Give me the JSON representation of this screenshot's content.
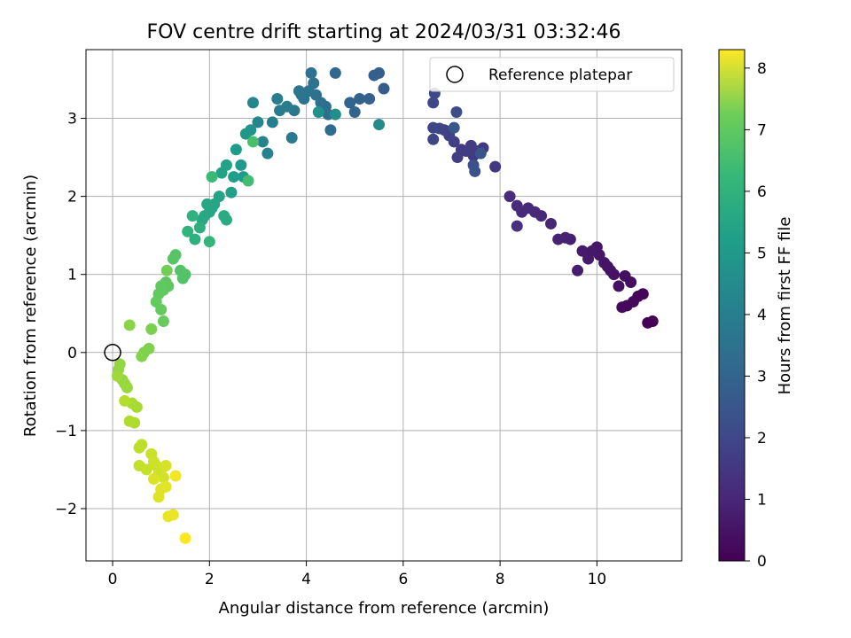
{
  "chart_data": {
    "type": "scatter",
    "title": "FOV centre drift starting at 2024/03/31 03:32:46",
    "xlabel": "Angular distance from reference (arcmin)",
    "ylabel": "Rotation from reference (arcmin)",
    "xlim": [
      -0.55,
      11.75
    ],
    "ylim": [
      -2.67,
      3.88
    ],
    "xticks": [
      0,
      2,
      4,
      6,
      8,
      10
    ],
    "yticks": [
      -2,
      -1,
      0,
      1,
      2,
      3
    ],
    "grid": true,
    "legend": {
      "placement": "top-right",
      "entries": [
        "Reference platepar"
      ]
    },
    "reference_point": {
      "x": 0,
      "y": 0
    },
    "colorbar": {
      "label": "Hours from first FF file",
      "colormap": "viridis",
      "range": [
        0,
        8.3
      ],
      "ticks": [
        0,
        1,
        2,
        3,
        4,
        5,
        6,
        7,
        8
      ]
    },
    "series": [
      {
        "points": [
          [
            11.15,
            0.4
          ],
          [
            11.05,
            0.38
          ],
          [
            10.95,
            0.75
          ],
          [
            10.85,
            0.72
          ],
          [
            10.75,
            0.65
          ],
          [
            10.62,
            0.6
          ],
          [
            10.52,
            0.58
          ],
          [
            10.7,
            0.9
          ],
          [
            10.58,
            0.98
          ],
          [
            10.45,
            0.85
          ],
          [
            10.35,
            1.0
          ],
          [
            10.28,
            1.05
          ],
          [
            10.22,
            1.1
          ],
          [
            10.15,
            1.15
          ],
          [
            10.05,
            1.25
          ],
          [
            10.0,
            1.35
          ],
          [
            9.9,
            1.3
          ],
          [
            9.82,
            1.2
          ],
          [
            9.7,
            1.3
          ],
          [
            9.6,
            1.05
          ],
          [
            9.45,
            1.45
          ],
          [
            9.35,
            1.47
          ],
          [
            9.2,
            1.45
          ],
          [
            9.05,
            1.65
          ],
          [
            8.85,
            1.75
          ],
          [
            8.72,
            1.8
          ],
          [
            8.58,
            1.85
          ],
          [
            8.45,
            1.8
          ],
          [
            8.35,
            1.88
          ],
          [
            8.2,
            2.0
          ],
          [
            8.35,
            1.62
          ],
          [
            7.9,
            2.38
          ],
          [
            7.65,
            2.62
          ],
          [
            7.55,
            2.58
          ],
          [
            7.45,
            2.52
          ],
          [
            7.4,
            2.65
          ],
          [
            7.3,
            2.58
          ],
          [
            7.2,
            2.6
          ],
          [
            7.12,
            2.5
          ],
          [
            7.05,
            2.7
          ],
          [
            6.95,
            2.78
          ],
          [
            6.85,
            2.85
          ],
          [
            6.75,
            2.87
          ],
          [
            6.62,
            2.73
          ],
          [
            6.62,
            2.88
          ],
          [
            6.62,
            3.2
          ],
          [
            6.65,
            3.32
          ],
          [
            7.1,
            3.08
          ],
          [
            7.45,
            2.4
          ],
          [
            7.48,
            2.32
          ],
          [
            7.6,
            2.55
          ],
          [
            7.05,
            2.88
          ],
          [
            5.6,
            3.38
          ],
          [
            5.5,
            3.58
          ],
          [
            5.4,
            3.55
          ],
          [
            5.3,
            3.25
          ],
          [
            5.1,
            3.25
          ],
          [
            5.0,
            3.08
          ],
          [
            4.9,
            3.2
          ],
          [
            4.6,
            3.58
          ],
          [
            4.5,
            2.85
          ],
          [
            4.45,
            3.05
          ],
          [
            4.4,
            3.15
          ],
          [
            4.3,
            3.2
          ],
          [
            4.2,
            3.3
          ],
          [
            4.1,
            3.58
          ],
          [
            4.15,
            3.45
          ],
          [
            4.05,
            3.35
          ],
          [
            3.95,
            3.25
          ],
          [
            3.9,
            3.3
          ],
          [
            3.85,
            3.35
          ],
          [
            3.75,
            3.1
          ],
          [
            3.7,
            2.75
          ],
          [
            3.6,
            3.15
          ],
          [
            3.45,
            3.1
          ],
          [
            3.4,
            3.25
          ],
          [
            3.3,
            2.95
          ],
          [
            3.2,
            2.55
          ],
          [
            3.1,
            2.7
          ],
          [
            3.0,
            2.95
          ],
          [
            2.9,
            3.2
          ],
          [
            5.5,
            2.92
          ],
          [
            4.6,
            3.05
          ],
          [
            4.25,
            3.08
          ],
          [
            2.85,
            2.85
          ],
          [
            2.75,
            2.8
          ],
          [
            2.7,
            2.25
          ],
          [
            2.65,
            2.4
          ],
          [
            2.55,
            2.6
          ],
          [
            2.5,
            2.25
          ],
          [
            2.45,
            2.05
          ],
          [
            2.35,
            2.4
          ],
          [
            2.25,
            2.3
          ],
          [
            2.2,
            2.0
          ],
          [
            2.1,
            1.9
          ],
          [
            2.05,
            1.85
          ],
          [
            2.0,
            1.8
          ],
          [
            1.95,
            1.9
          ],
          [
            1.9,
            1.75
          ],
          [
            1.85,
            1.7
          ],
          [
            2.3,
            1.75
          ],
          [
            2.35,
            1.7
          ],
          [
            1.8,
            1.6
          ],
          [
            1.7,
            1.45
          ],
          [
            1.65,
            1.75
          ],
          [
            1.55,
            1.55
          ],
          [
            2.0,
            1.42
          ],
          [
            2.05,
            2.25
          ],
          [
            2.8,
            2.2
          ],
          [
            2.9,
            2.7
          ],
          [
            1.5,
            1.0
          ],
          [
            1.45,
            0.95
          ],
          [
            1.4,
            1.05
          ],
          [
            1.3,
            1.25
          ],
          [
            1.25,
            1.2
          ],
          [
            1.15,
            0.85
          ],
          [
            1.1,
            0.9
          ],
          [
            1.05,
            0.8
          ],
          [
            1.0,
            0.85
          ],
          [
            0.95,
            0.75
          ],
          [
            0.9,
            0.65
          ],
          [
            1.0,
            0.55
          ],
          [
            1.05,
            0.4
          ],
          [
            1.12,
            1.05
          ],
          [
            0.8,
            0.3
          ],
          [
            0.75,
            0.05
          ],
          [
            0.65,
            0.0
          ],
          [
            0.6,
            -0.05
          ],
          [
            0.35,
            0.35
          ],
          [
            0.15,
            -0.15
          ],
          [
            0.12,
            -0.22
          ],
          [
            0.2,
            -0.35
          ],
          [
            0.25,
            -0.4
          ],
          [
            0.3,
            -0.45
          ],
          [
            0.1,
            -0.3
          ],
          [
            0.5,
            -0.7
          ],
          [
            0.4,
            -0.65
          ],
          [
            0.45,
            -0.9
          ],
          [
            0.35,
            -0.88
          ],
          [
            0.25,
            -0.62
          ],
          [
            0.55,
            -1.22
          ],
          [
            0.6,
            -1.18
          ],
          [
            0.55,
            -1.45
          ],
          [
            0.7,
            -1.5
          ],
          [
            0.8,
            -1.3
          ],
          [
            0.85,
            -1.4
          ],
          [
            0.9,
            -1.45
          ],
          [
            0.95,
            -1.55
          ],
          [
            1.0,
            -1.5
          ],
          [
            1.05,
            -1.6
          ],
          [
            1.1,
            -1.45
          ],
          [
            0.85,
            -1.62
          ],
          [
            0.95,
            -1.85
          ],
          [
            1.0,
            -1.75
          ],
          [
            1.1,
            -1.72
          ],
          [
            1.15,
            -2.1
          ],
          [
            1.25,
            -2.08
          ],
          [
            1.3,
            -1.58
          ],
          [
            1.5,
            -2.38
          ]
        ]
      }
    ]
  }
}
